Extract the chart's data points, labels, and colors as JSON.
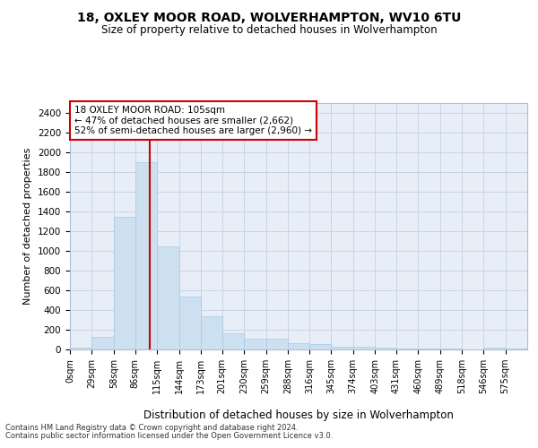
{
  "title1": "18, OXLEY MOOR ROAD, WOLVERHAMPTON, WV10 6TU",
  "title2": "Size of property relative to detached houses in Wolverhampton",
  "xlabel": "Distribution of detached houses by size in Wolverhampton",
  "ylabel": "Number of detached properties",
  "footnote1": "Contains HM Land Registry data © Crown copyright and database right 2024.",
  "footnote2": "Contains public sector information licensed under the Open Government Licence v3.0.",
  "annotation_line1": "18 OXLEY MOOR ROAD: 105sqm",
  "annotation_line2": "← 47% of detached houses are smaller (2,662)",
  "annotation_line3": "52% of semi-detached houses are larger (2,960) →",
  "property_size": 105,
  "bar_labels": [
    "0sqm",
    "29sqm",
    "58sqm",
    "86sqm",
    "115sqm",
    "144sqm",
    "173sqm",
    "201sqm",
    "230sqm",
    "259sqm",
    "288sqm",
    "316sqm",
    "345sqm",
    "374sqm",
    "403sqm",
    "431sqm",
    "460sqm",
    "489sqm",
    "518sqm",
    "546sqm",
    "575sqm"
  ],
  "bar_values": [
    15,
    125,
    1350,
    1900,
    1045,
    535,
    335,
    160,
    105,
    105,
    60,
    55,
    30,
    25,
    15,
    10,
    5,
    5,
    2,
    15,
    5
  ],
  "bin_edges": [
    0,
    29,
    58,
    86,
    115,
    144,
    173,
    201,
    230,
    259,
    288,
    316,
    345,
    374,
    403,
    431,
    460,
    489,
    518,
    546,
    575,
    604
  ],
  "bar_color": "#cce0f0",
  "bar_edge_color": "#a8c8e8",
  "vline_x": 105,
  "vline_color": "#cc0000",
  "annotation_box_color": "#cc0000",
  "grid_color": "#c8d4e4",
  "background_color": "#e8eef8",
  "ylim": [
    0,
    2500
  ],
  "yticks": [
    0,
    200,
    400,
    600,
    800,
    1000,
    1200,
    1400,
    1600,
    1800,
    2000,
    2200,
    2400
  ]
}
